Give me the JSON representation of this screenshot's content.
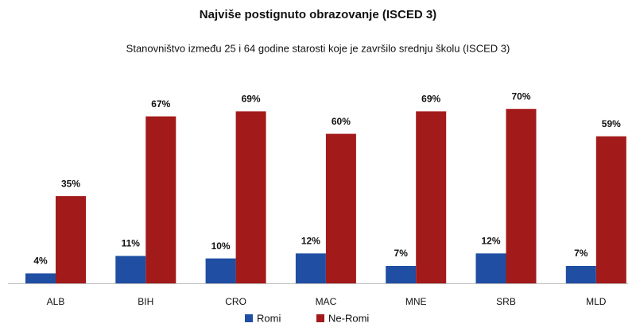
{
  "chart_data": {
    "type": "bar",
    "title": "Najviše postignuto obrazovanje (ISCED 3)",
    "subtitle": "Stanovništvo između 25 i 64 godine starosti koje je završilo srednju školu (ISCED 3)",
    "categories": [
      "ALB",
      "BIH",
      "CRO",
      "MAC",
      "MNE",
      "SRB",
      "MLD"
    ],
    "series": [
      {
        "name": "Romi",
        "color": "#1f4ea3",
        "values": [
          4,
          11,
          10,
          12,
          7,
          12,
          7
        ],
        "value_labels": [
          "4%",
          "11%",
          "10%",
          "12%",
          "7%",
          "12%",
          "7%"
        ]
      },
      {
        "name": "Ne-Romi",
        "color": "#a31a1a",
        "values": [
          35,
          67,
          69,
          60,
          69,
          70,
          59
        ],
        "value_labels": [
          "35%",
          "67%",
          "69%",
          "60%",
          "69%",
          "70%",
          "59%"
        ]
      }
    ],
    "legend": "bottom"
  }
}
